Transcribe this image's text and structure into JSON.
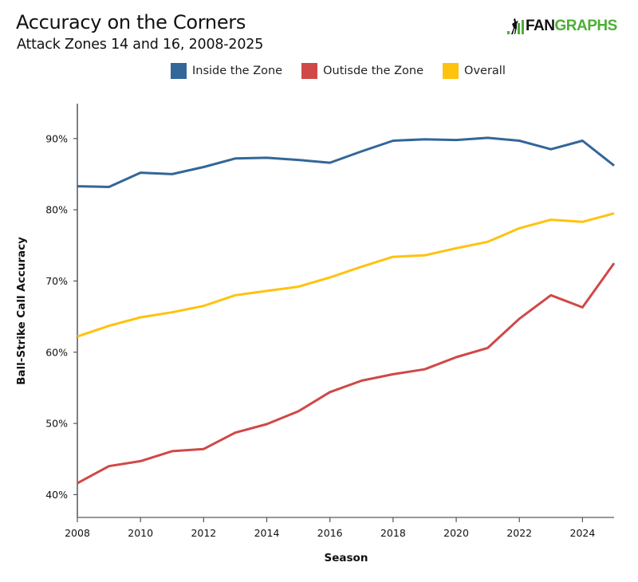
{
  "header": {
    "title": "Accuracy on the Corners",
    "subtitle": "Attack Zones 14 and 16, 2008-2025",
    "logo": {
      "part1": "FAN",
      "part2": "GRAPHS",
      "icon": "batter-bars-icon",
      "colors": {
        "dark": "#111111",
        "green": "#4caf35"
      }
    }
  },
  "chart_data": {
    "type": "line",
    "title": "Accuracy on the Corners",
    "subtitle": "Attack Zones 14 and 16, 2008-2025",
    "xlabel": "Season",
    "ylabel": "Ball-Strike Call Accuracy",
    "x": [
      2008,
      2009,
      2010,
      2011,
      2012,
      2013,
      2014,
      2015,
      2016,
      2017,
      2018,
      2019,
      2020,
      2021,
      2022,
      2023,
      2024,
      2025
    ],
    "xlim": [
      2008,
      2025
    ],
    "ylim": [
      36.8,
      94.9
    ],
    "x_ticks": [
      2008,
      2010,
      2012,
      2014,
      2016,
      2018,
      2020,
      2022,
      2024
    ],
    "x_tick_labels": [
      "2008",
      "2010",
      "2012",
      "2014",
      "2016",
      "2018",
      "2020",
      "2022",
      "2024"
    ],
    "y_ticks": [
      40,
      50,
      60,
      70,
      80,
      90
    ],
    "y_tick_labels": [
      "40%",
      "50%",
      "60%",
      "70%",
      "80%",
      "90%"
    ],
    "grid": false,
    "legend_position": "top-center",
    "series": [
      {
        "name": "Inside the Zone",
        "color": "#336699",
        "values": [
          83.3,
          83.2,
          85.2,
          85.0,
          86.0,
          87.2,
          87.3,
          87.0,
          86.6,
          88.2,
          89.7,
          89.9,
          89.8,
          90.1,
          89.7,
          88.5,
          89.7,
          86.2
        ]
      },
      {
        "name": "Outisde the Zone",
        "color": "#d04848",
        "values": [
          41.6,
          44.0,
          44.7,
          46.1,
          46.4,
          48.7,
          49.9,
          51.7,
          54.4,
          56.0,
          56.9,
          57.6,
          59.3,
          60.6,
          64.7,
          68.0,
          66.3,
          72.5
        ]
      },
      {
        "name": "Overall",
        "color": "#ffc20e",
        "values": [
          62.2,
          63.7,
          64.9,
          65.6,
          66.5,
          68.0,
          68.6,
          69.2,
          70.5,
          72.0,
          73.4,
          73.6,
          74.6,
          75.5,
          77.4,
          78.6,
          78.3,
          79.5
        ]
      }
    ]
  }
}
